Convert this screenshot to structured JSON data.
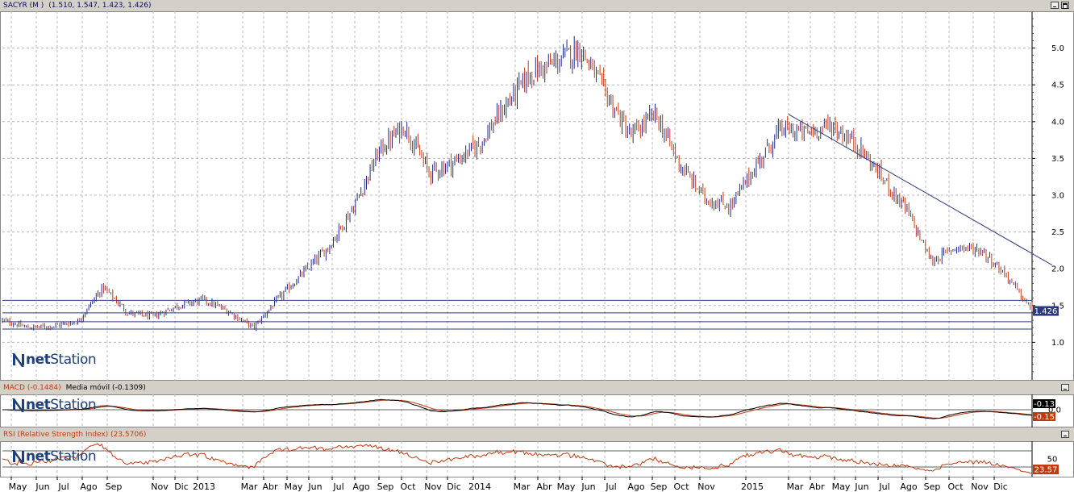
{
  "panels": {
    "price": {
      "title_parts": [
        "SACYR (M )",
        "(1.510, 1.547, 1.423, 1.426)"
      ],
      "last_value_label": "1.426"
    },
    "macd": {
      "title_parts": [
        "MACD (-0.1484)",
        "Media móvil (-0.1309)"
      ],
      "value_labels": [
        "-0.13",
        "-0.15"
      ]
    },
    "rsi": {
      "title_parts": [
        "RSI (Relative Strength Index) (23.5706)"
      ],
      "value_label": "23.57"
    }
  },
  "watermark": {
    "prefix": "net",
    "suffix": "Station"
  },
  "colors": {
    "up_candle": "#1f2a8a",
    "down_candle": "#c03a10",
    "grid": "#b8b8b8",
    "level_line": "#2a3a7a",
    "trend_line": "#2a3a7a",
    "macd_line": "#000000",
    "signal_line": "#c03a10",
    "rsi_line": "#c03a10",
    "last_label_bg": "#2a3a7a",
    "signal_label_bg": "#c03a10"
  },
  "chart_data": [
    {
      "type": "candlestick",
      "title": "SACYR (M )",
      "ohlc_last": {
        "open": 1.51,
        "high": 1.547,
        "low": 1.423,
        "close": 1.426
      },
      "x_tick_labels": [
        "May",
        "Jun",
        "Jul",
        "Ago",
        "Sep",
        "Nov",
        "Dic",
        "2013",
        "Mar",
        "Abr",
        "May",
        "Jun",
        "Jul",
        "Ago",
        "Sep",
        "Oct",
        "Nov",
        "Dic",
        "2014",
        "Mar",
        "Abr",
        "May",
        "Jun",
        "Jul",
        "Ago",
        "Sep",
        "Oct",
        "Nov",
        "2015",
        "Mar",
        "Abr",
        "May",
        "Jun",
        "Jul",
        "Ago",
        "Sep",
        "Oct",
        "Nov",
        "Dic"
      ],
      "y_ticks": [
        1.0,
        1.5,
        2.0,
        2.5,
        3.0,
        3.5,
        4.0,
        4.5,
        5.0
      ],
      "y_tick_labels": [
        "1.0",
        "1.5",
        "2.0",
        "2.5",
        "3.0",
        "3.5",
        "4.0",
        "4.5",
        "5.0"
      ],
      "ylim": [
        0.5,
        5.5
      ],
      "grid": true,
      "price_path_monthly": [
        1.3,
        1.2,
        1.22,
        1.28,
        1.75,
        1.4,
        1.35,
        1.5,
        1.58,
        1.42,
        1.2,
        1.6,
        1.95,
        2.3,
        2.85,
        3.6,
        3.95,
        3.3,
        3.45,
        3.7,
        4.2,
        4.65,
        4.8,
        5.0,
        4.4,
        3.8,
        4.1,
        3.4,
        2.95,
        2.85,
        3.4,
        3.9,
        3.85,
        3.95,
        3.7,
        3.25,
        2.8,
        2.1,
        2.3,
        2.25,
        1.9,
        1.426
      ],
      "horizontal_levels": [
        1.57,
        1.4,
        1.28,
        1.18
      ],
      "trendline": {
        "from": {
          "month_index": 31.3,
          "value": 4.1
        },
        "to": {
          "month_index": 41.8,
          "value": 2.05
        }
      }
    },
    {
      "type": "line",
      "title": "MACD",
      "series": [
        {
          "name": "MACD",
          "last": -0.1484
        },
        {
          "name": "Media móvil",
          "last": -0.1309
        }
      ],
      "y_ticks": [
        0.0
      ],
      "y_tick_labels": [
        "0.0"
      ]
    },
    {
      "type": "line",
      "title": "RSI (Relative Strength Index)",
      "series": [
        {
          "name": "RSI",
          "last": 23.5706
        }
      ],
      "y_ticks": [
        50
      ],
      "y_tick_labels": [
        "50"
      ],
      "ylim": [
        0,
        100
      ]
    }
  ]
}
